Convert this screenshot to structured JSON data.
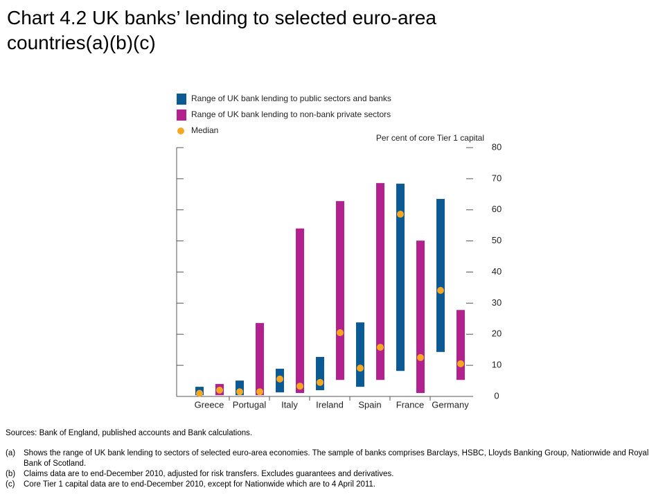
{
  "chart_data": {
    "type": "range-bar",
    "title": "Chart 4.2  UK banks’ lending to selected euro-area countries(a)(b)(c)",
    "y_axis_label": "Per cent of core Tier 1 capital",
    "categories": [
      "Greece",
      "Portugal",
      "Italy",
      "Ireland",
      "Spain",
      "France",
      "Germany"
    ],
    "series": [
      {
        "name": "Range of UK bank lending to public sectors and banks",
        "color": "#0b5a94",
        "low": [
          0.4,
          0.4,
          1.3,
          2,
          3.1,
          8.2,
          14.3
        ],
        "high": [
          3.1,
          5.1,
          8.9,
          12.7,
          23.8,
          68.4,
          63.5
        ],
        "median": [
          1,
          1.5,
          5.6,
          4.5,
          9.1,
          58.6,
          34.1
        ]
      },
      {
        "name": "Range of UK bank lending to non-bank private sectors",
        "color": "#b2218e",
        "low": [
          0.4,
          0.4,
          1.1,
          5.3,
          5.3,
          1.1,
          5.3
        ],
        "high": [
          4,
          23.6,
          54,
          62.8,
          68.6,
          50.1,
          27.8
        ],
        "median": [
          2,
          1.5,
          3.3,
          20.5,
          15.8,
          12.5,
          10.5
        ]
      }
    ],
    "median_legend": {
      "name": "Median",
      "color": "#f7a823"
    },
    "ylim": [
      0,
      80
    ],
    "yticks": [
      0,
      10,
      20,
      30,
      40,
      50,
      60,
      70,
      80
    ],
    "sources": "Sources:  Bank of England, published accounts and Bank calculations.",
    "notes": [
      {
        "marker": "(a)",
        "text": "Shows the range of UK bank lending to sectors of selected euro-area economies.  The sample of banks comprises Barclays, HSBC, Lloyds Banking Group, Nationwide and Royal Bank of Scotland."
      },
      {
        "marker": "(b)",
        "text": "Claims data are to end-December 2010, adjusted for risk transfers.  Excludes guarantees and derivatives."
      },
      {
        "marker": "(c)",
        "text": "Core Tier 1 capital data are to end-December 2010, except for Nationwide which are to 4 April 2011."
      }
    ]
  }
}
